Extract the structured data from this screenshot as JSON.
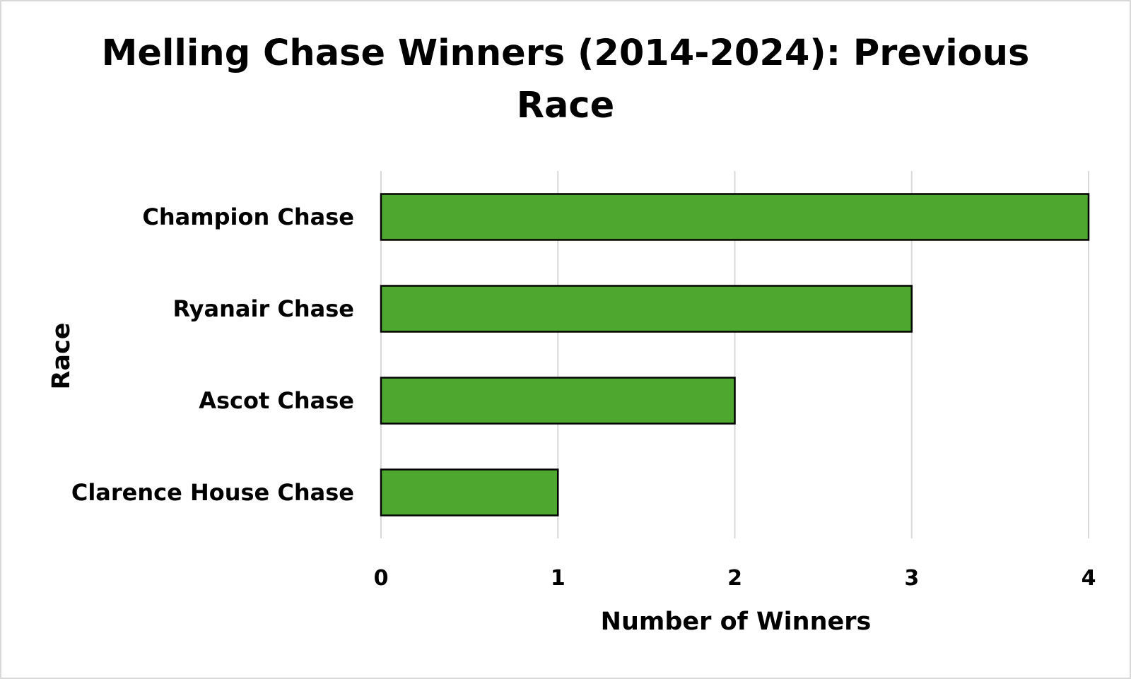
{
  "chart_data": {
    "type": "bar",
    "orientation": "horizontal",
    "title_lines": [
      "Melling Chase Winners (2014-2024): Previous",
      "Race"
    ],
    "xlabel": "Number of Winners",
    "ylabel": "Race",
    "categories": [
      "Champion Chase",
      "Ryanair Chase",
      "Ascot Chase",
      "Clarence House Chase"
    ],
    "values": [
      4,
      3,
      2,
      1
    ],
    "xlim": [
      0,
      4
    ],
    "xticks": [
      "0",
      "1",
      "2",
      "3",
      "4"
    ],
    "grid": "vertical",
    "legend": "none",
    "bar_color": "#4ea72e",
    "bar_edge_color": "#000000"
  }
}
